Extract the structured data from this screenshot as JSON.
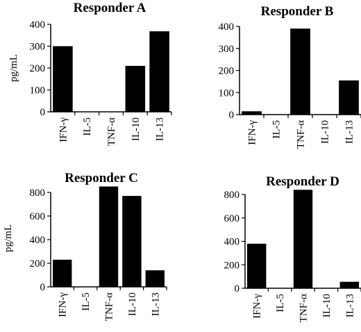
{
  "chart_data": [
    {
      "type": "bar",
      "title": "Responder A",
      "ylabel": "pg/mL",
      "categories": [
        "IFN-γ",
        "IL-5",
        "TNF-α",
        "IL-10",
        "IL-13"
      ],
      "values": [
        300,
        0,
        0,
        210,
        368
      ],
      "ylim": [
        0,
        400
      ],
      "yticks": [
        0,
        100,
        200,
        300,
        400
      ]
    },
    {
      "type": "bar",
      "title": "Responder B",
      "ylabel": "",
      "categories": [
        "IFN-γ",
        "IL-5",
        "TNF-α",
        "IL-10",
        "IL-13"
      ],
      "values": [
        15,
        0,
        390,
        0,
        155
      ],
      "ylim": [
        0,
        400
      ],
      "yticks": [
        0,
        100,
        200,
        300,
        400
      ]
    },
    {
      "type": "bar",
      "title": "Responder C",
      "ylabel": "pg/mL",
      "categories": [
        "IFN-γ",
        "IL-5",
        "TNF-α",
        "IL-10",
        "IL-13"
      ],
      "values": [
        230,
        0,
        850,
        770,
        140
      ],
      "ylim": [
        0,
        800
      ],
      "yticks": [
        0,
        200,
        400,
        600,
        800
      ]
    },
    {
      "type": "bar",
      "title": "Responder D",
      "ylabel": "",
      "categories": [
        "IFN-γ",
        "IL-5",
        "TNF-α",
        "IL-10",
        "IL-13"
      ],
      "values": [
        380,
        0,
        840,
        0,
        55
      ],
      "ylim": [
        0,
        800
      ],
      "yticks": [
        0,
        200,
        400,
        600,
        800
      ]
    }
  ]
}
